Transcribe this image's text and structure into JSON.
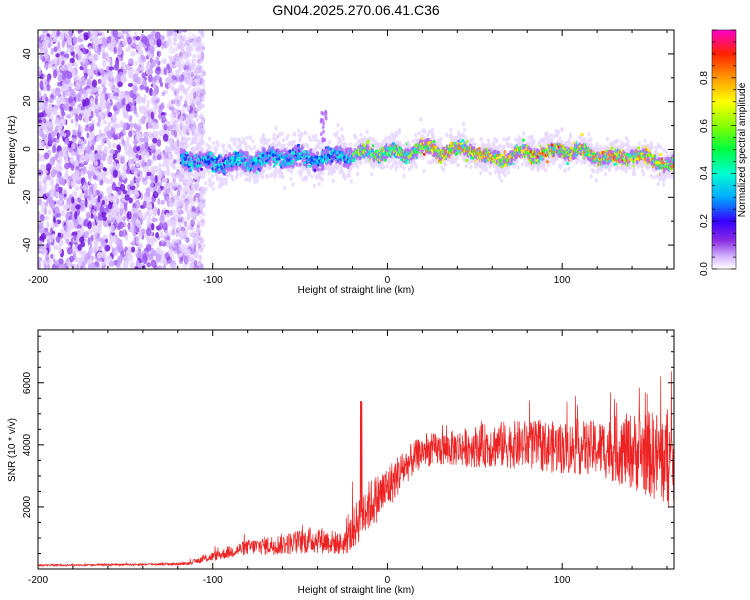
{
  "figure_title": "GN04.2025.270.06.41.C36",
  "colors": {
    "signal_line": "#ee2222",
    "frame": "#000000",
    "background": "#ffffff"
  },
  "chart_data": [
    {
      "type": "heatmap",
      "name": "spectrogram",
      "title": "GN04.2025.270.06.41.C36",
      "xlabel": "Height of straight line (km)",
      "ylabel": "Frequency (Hz)",
      "xlim": [
        -200,
        164
      ],
      "ylim": [
        -50,
        50
      ],
      "xticks": [
        -200,
        -100,
        0,
        100
      ],
      "xtick_labels": [
        "-200",
        "-100",
        "0",
        "100"
      ],
      "yticks": [
        -40,
        -20,
        0,
        20,
        40
      ],
      "ytick_labels": [
        "-40",
        "-20",
        "0",
        "20",
        "40"
      ],
      "colorbar": {
        "label": "Normalized spectral amplitude",
        "range": [
          0,
          1
        ],
        "ticks": [
          0,
          0.2,
          0.4,
          0.6,
          0.8
        ],
        "tick_labels": [
          "0.0",
          "0.2",
          "0.4",
          "0.6",
          "0.8"
        ]
      },
      "ridge_frequency": {
        "x": [
          -115,
          -100,
          -80,
          -60,
          -40,
          -20,
          0,
          10,
          20,
          30,
          40,
          50,
          55,
          60,
          70,
          80,
          90,
          100,
          110,
          120,
          130,
          140,
          150,
          160
        ],
        "y": [
          -4,
          -6,
          -5,
          -3,
          -4,
          -2,
          -1,
          -2,
          1,
          -1,
          0,
          0,
          -3,
          -4,
          -3,
          -1,
          -2,
          0,
          -1,
          -3,
          -4,
          -2,
          -4,
          -6
        ]
      },
      "noise_region_x": [
        -200,
        -115
      ]
    },
    {
      "type": "line",
      "name": "snr",
      "xlabel": "Height of straight line (km)",
      "ylabel": "SNR (10 * v/v)",
      "xlim": [
        -200,
        164
      ],
      "ylim": [
        0,
        7700
      ],
      "xticks": [
        -200,
        -100,
        0,
        100
      ],
      "xtick_labels": [
        "-200",
        "-100",
        "0",
        "100"
      ],
      "yticks": [
        2000,
        4000,
        6000
      ],
      "ytick_labels": [
        "2000",
        "4000",
        "6000"
      ],
      "series": [
        {
          "name": "SNR",
          "color": "#ee2222",
          "envelope_x": [
            -200,
            -150,
            -115,
            -100,
            -80,
            -60,
            -40,
            -25,
            -20,
            -15,
            0,
            10,
            20,
            40,
            60,
            80,
            100,
            120,
            140,
            150,
            160,
            164
          ],
          "envelope_mean": [
            120,
            140,
            170,
            400,
            700,
            800,
            950,
            800,
            1200,
            1800,
            2600,
            3300,
            3800,
            3900,
            4000,
            4000,
            3900,
            3900,
            3800,
            3700,
            3500,
            3500
          ],
          "envelope_spread": [
            60,
            60,
            90,
            300,
            500,
            700,
            900,
            700,
            1300,
            1700,
            1500,
            1200,
            1000,
            1200,
            1500,
            1600,
            1700,
            1800,
            2500,
            2800,
            3200,
            3200
          ]
        }
      ]
    }
  ]
}
